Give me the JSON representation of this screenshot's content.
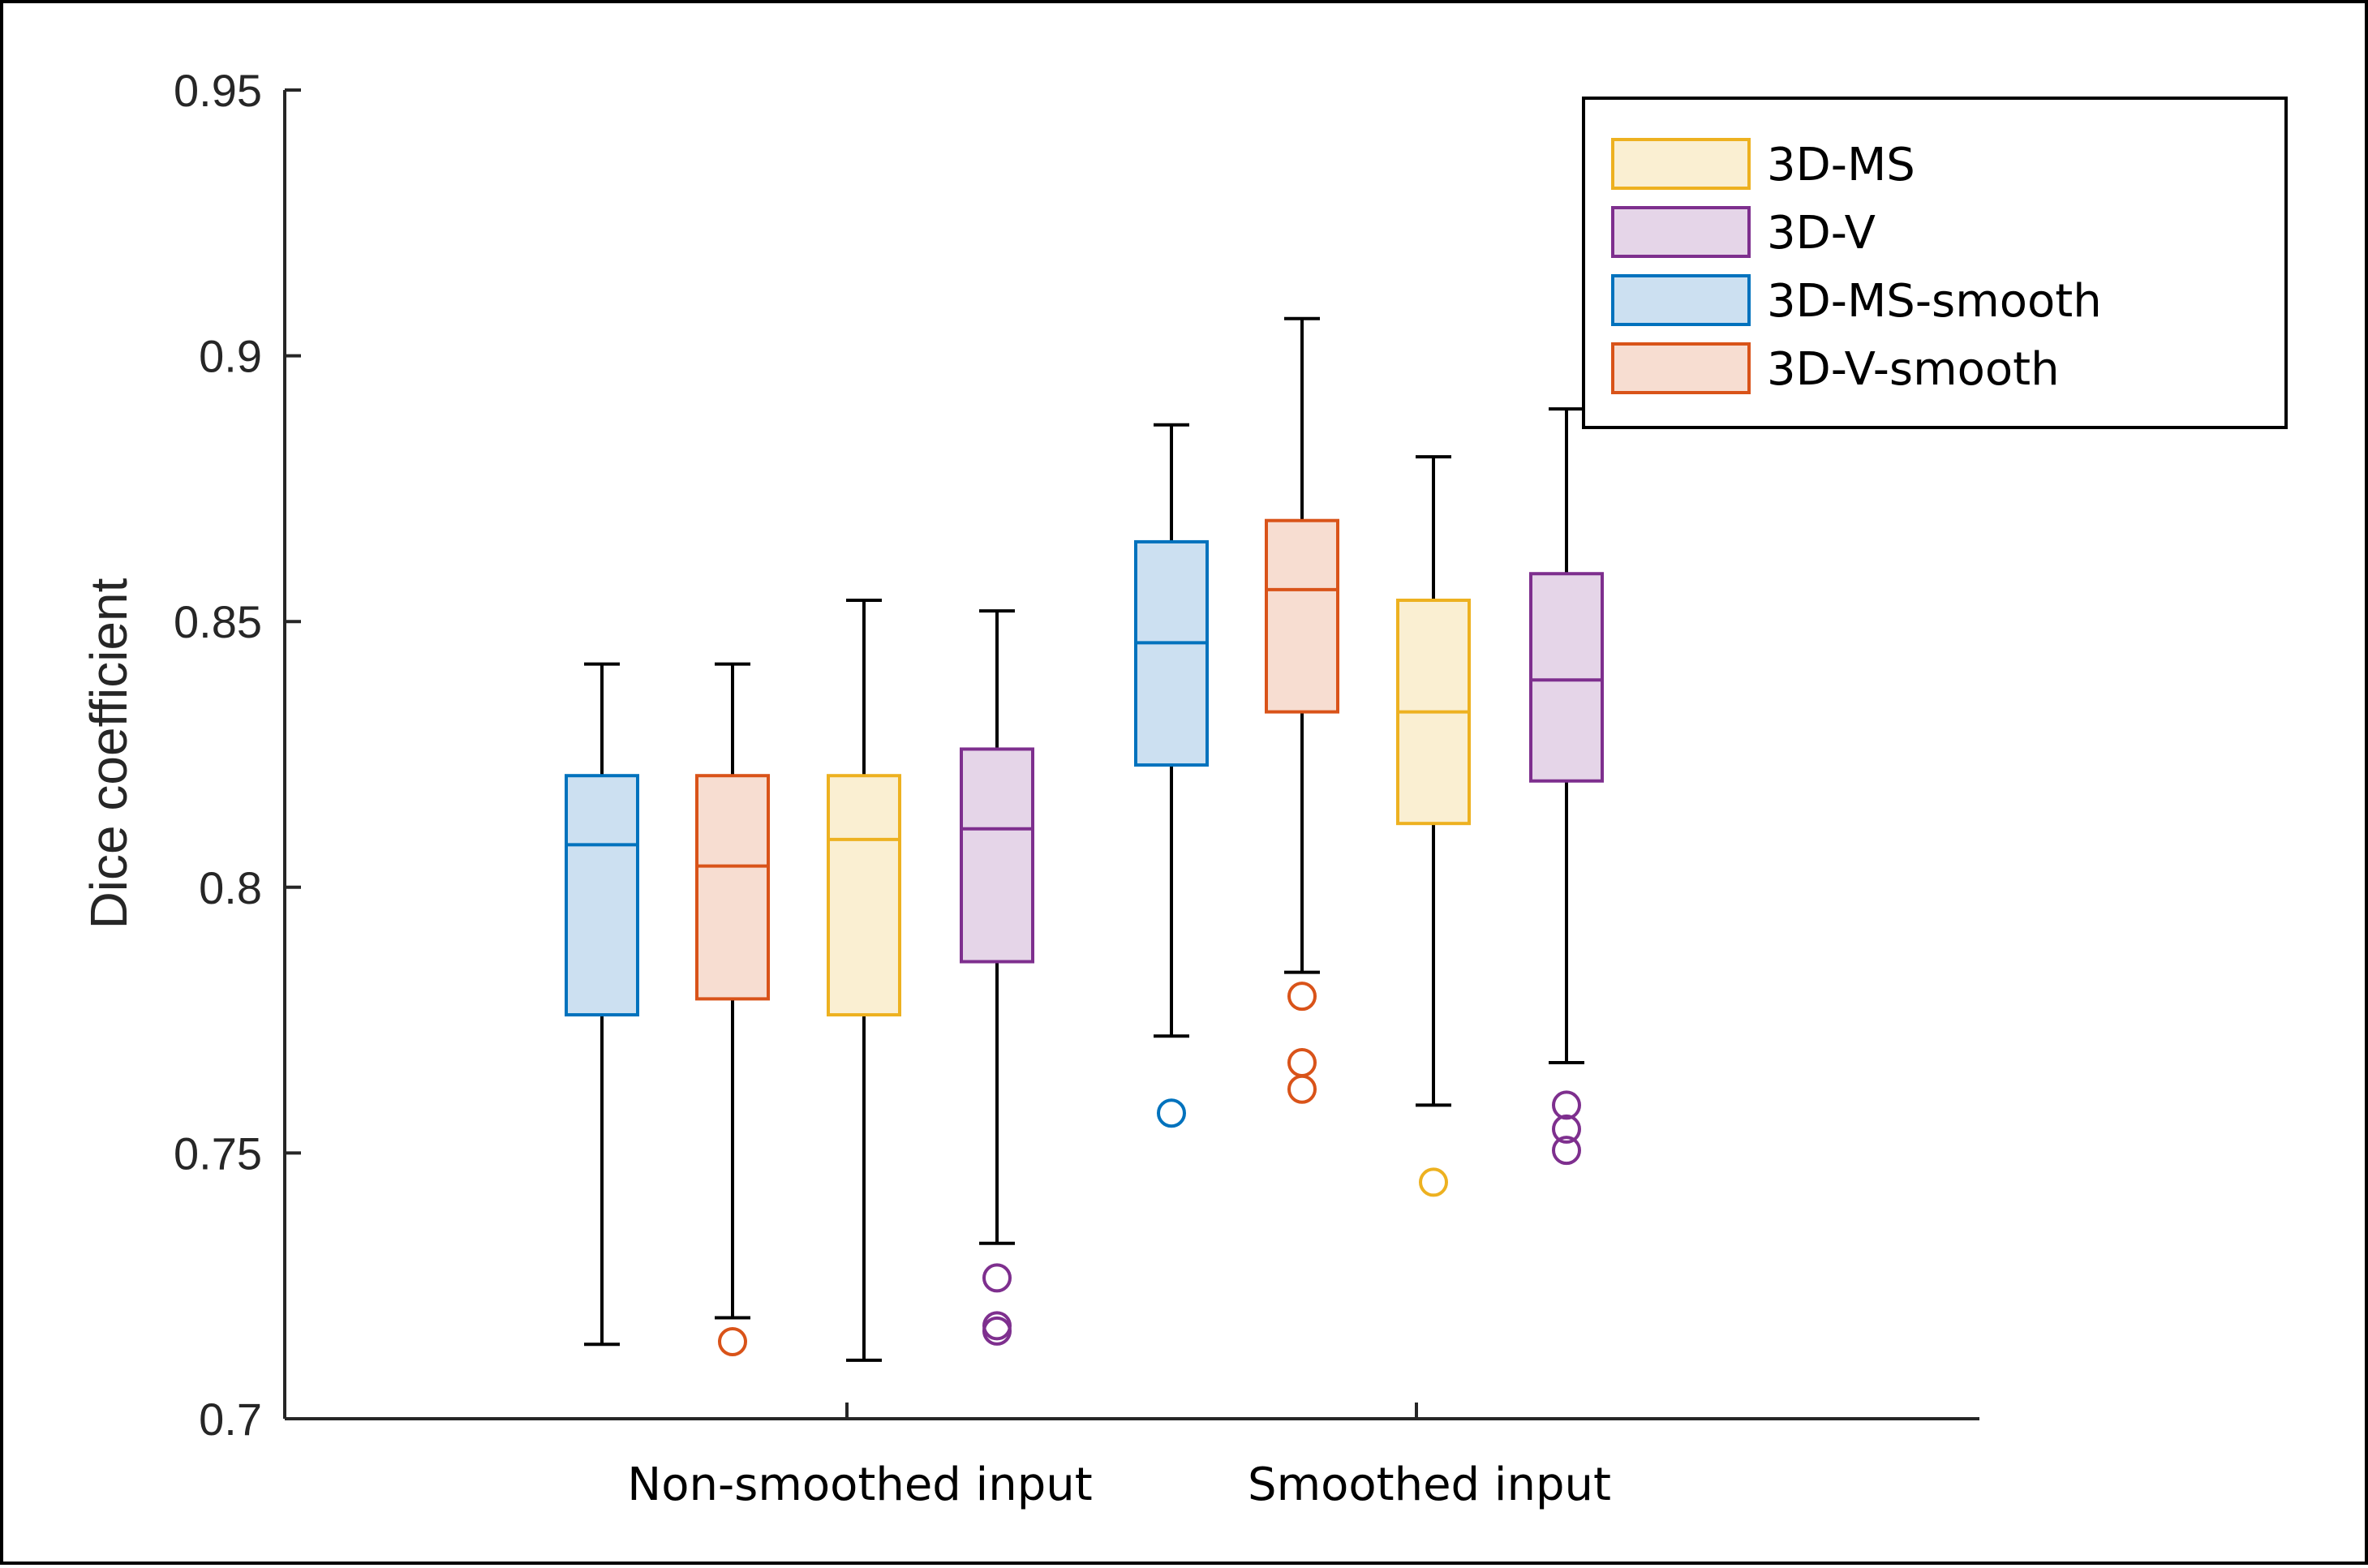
{
  "chart_data": {
    "type": "boxplot",
    "title": "",
    "xlabel": "",
    "ylabel": "Dice coefficient",
    "ylim": [
      0.7,
      0.95
    ],
    "yticks": [
      0.7,
      0.75,
      0.8,
      0.85,
      0.9,
      0.95
    ],
    "ytick_labels": [
      "0.7",
      "0.75",
      "0.8",
      "0.85",
      "0.9",
      "0.95"
    ],
    "categories": [
      "Non-smoothed input",
      "Smoothed input"
    ],
    "legend_position": "top-right",
    "series": [
      {
        "name": "3D-MS",
        "color": "#EDB120",
        "fill": "#FAEFD2"
      },
      {
        "name": "3D-V",
        "color": "#7E2F8E",
        "fill": "#E5D5E8"
      },
      {
        "name": "3D-MS-smooth",
        "color": "#0072BD",
        "fill": "#CCE0F1"
      },
      {
        "name": "3D-V-smooth",
        "color": "#D95319",
        "fill": "#F7DDD1"
      }
    ],
    "boxes": [
      {
        "category": "Non-smoothed input",
        "series": "3D-MS-smooth",
        "whisker_low": 0.714,
        "q1": 0.776,
        "median": 0.808,
        "q3": 0.821,
        "whisker_high": 0.842,
        "outliers": []
      },
      {
        "category": "Non-smoothed input",
        "series": "3D-V-smooth",
        "whisker_low": 0.719,
        "q1": 0.779,
        "median": 0.804,
        "q3": 0.821,
        "whisker_high": 0.842,
        "outliers": [
          0.7145
        ]
      },
      {
        "category": "Non-smoothed input",
        "series": "3D-MS",
        "whisker_low": 0.711,
        "q1": 0.776,
        "median": 0.809,
        "q3": 0.821,
        "whisker_high": 0.854,
        "outliers": []
      },
      {
        "category": "Non-smoothed input",
        "series": "3D-V",
        "whisker_low": 0.733,
        "q1": 0.786,
        "median": 0.811,
        "q3": 0.826,
        "whisker_high": 0.852,
        "outliers": [
          0.7265,
          0.7175,
          0.7165
        ]
      },
      {
        "category": "Smoothed input",
        "series": "3D-MS-smooth",
        "whisker_low": 0.772,
        "q1": 0.823,
        "median": 0.846,
        "q3": 0.865,
        "whisker_high": 0.887,
        "outliers": [
          0.7575
        ]
      },
      {
        "category": "Smoothed input",
        "series": "3D-V-smooth",
        "whisker_low": 0.784,
        "q1": 0.833,
        "median": 0.856,
        "q3": 0.869,
        "whisker_high": 0.907,
        "outliers": [
          0.7795,
          0.767,
          0.762
        ]
      },
      {
        "category": "Smoothed input",
        "series": "3D-MS",
        "whisker_low": 0.759,
        "q1": 0.812,
        "median": 0.833,
        "q3": 0.854,
        "whisker_high": 0.881,
        "outliers": [
          0.7445
        ]
      },
      {
        "category": "Smoothed input",
        "series": "3D-V",
        "whisker_low": 0.767,
        "q1": 0.82,
        "median": 0.839,
        "q3": 0.859,
        "whisker_high": 0.89,
        "outliers": [
          0.759,
          0.7545,
          0.7505
        ]
      }
    ]
  }
}
